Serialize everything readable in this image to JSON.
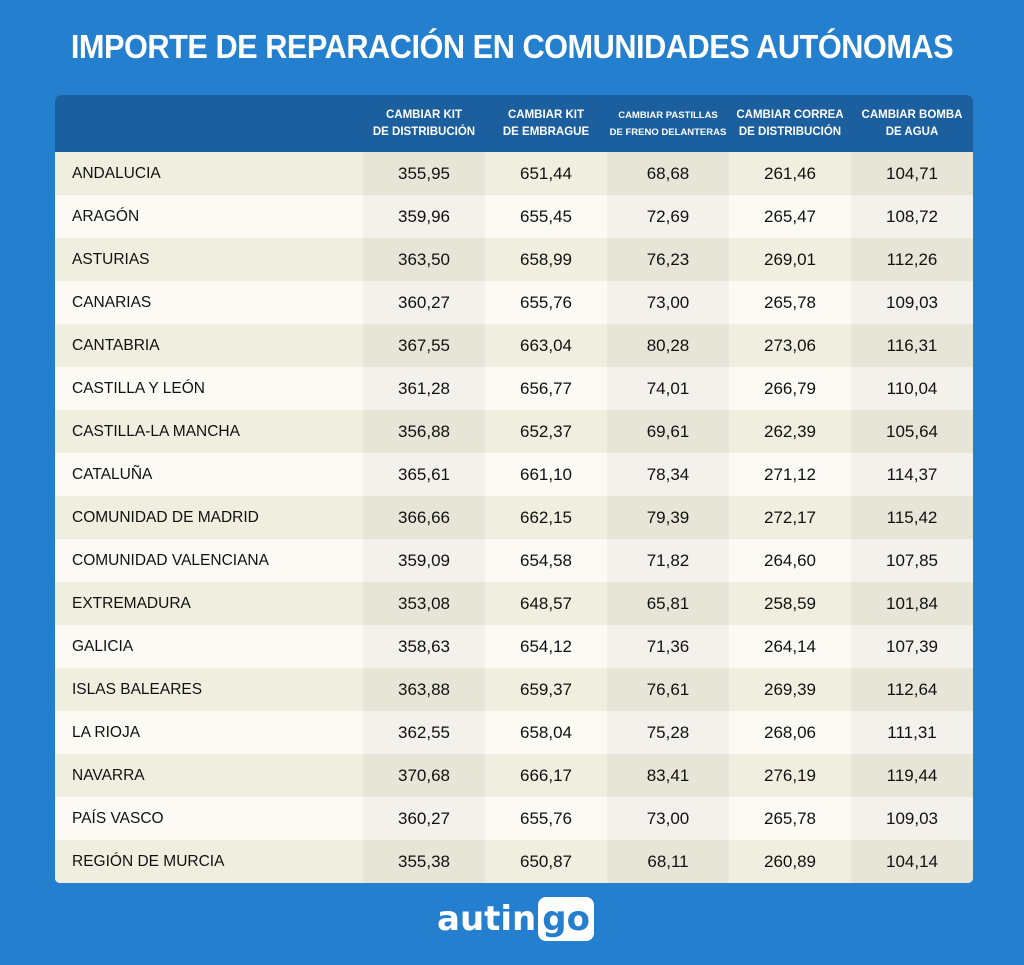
{
  "title": "IMPORTE DE REPARACIÓN EN COMUNIDADES AUTÓNOMAS",
  "columns": [
    "CAMBIAR KIT\nDE DISTRIBUCIÓN",
    "CAMBIAR KIT\nDE EMBRAGUE",
    "CAMBIAR  PASTILLAS\nDE FRENO DELANTERAS",
    "CAMBIAR CORREA\nDE DISTRIBUCIÓN",
    "CAMBIAR BOMBA\nDE AGUA"
  ],
  "rows": [
    [
      "ANDALUCIA",
      "355,95",
      "651,44",
      "68,68",
      "261,46",
      "104,71"
    ],
    [
      "ARAGÓN",
      "359,96",
      "655,45",
      "72,69",
      "265,47",
      "108,72"
    ],
    [
      "ASTURIAS",
      "363,50",
      "658,99",
      "76,23",
      "269,01",
      "112,26"
    ],
    [
      "CANARIAS",
      "360,27",
      "655,76",
      "73,00",
      "265,78",
      "109,03"
    ],
    [
      "CANTABRIA",
      "367,55",
      "663,04",
      "80,28",
      "273,06",
      "116,31"
    ],
    [
      "CASTILLA Y LEÓN",
      "361,28",
      "656,77",
      "74,01",
      "266,79",
      "110,04"
    ],
    [
      "CASTILLA-LA MANCHA",
      "356,88",
      "652,37",
      "69,61",
      "262,39",
      "105,64"
    ],
    [
      "CATALUÑA",
      "365,61",
      "661,10",
      "78,34",
      "271,12",
      "114,37"
    ],
    [
      "COMUNIDAD DE MADRID",
      "366,66",
      "662,15",
      "79,39",
      "272,17",
      "115,42"
    ],
    [
      "COMUNIDAD VALENCIANA",
      "359,09",
      "654,58",
      "71,82",
      "264,60",
      "107,85"
    ],
    [
      "EXTREMADURA",
      "353,08",
      "648,57",
      "65,81",
      "258,59",
      "101,84"
    ],
    [
      "GALICIA",
      "358,63",
      "654,12",
      "71,36",
      "264,14",
      "107,39"
    ],
    [
      "ISLAS BALEARES",
      "363,88",
      "659,37",
      "76,61",
      "269,39",
      "112,64"
    ],
    [
      "LA RIOJA",
      "362,55",
      "658,04",
      "75,28",
      "268,06",
      "111,31"
    ],
    [
      "NAVARRA",
      "370,68",
      "666,17",
      "83,41",
      "276,19",
      "119,44"
    ],
    [
      "PAÍS VASCO",
      "360,27",
      "655,76",
      "73,00",
      "265,78",
      "109,03"
    ],
    [
      "REGIÓN DE MURCIA",
      "355,38",
      "650,87",
      "68,11",
      "260,89",
      "104,14"
    ]
  ],
  "logo": {
    "text1": "autin",
    "text2": "go"
  }
}
